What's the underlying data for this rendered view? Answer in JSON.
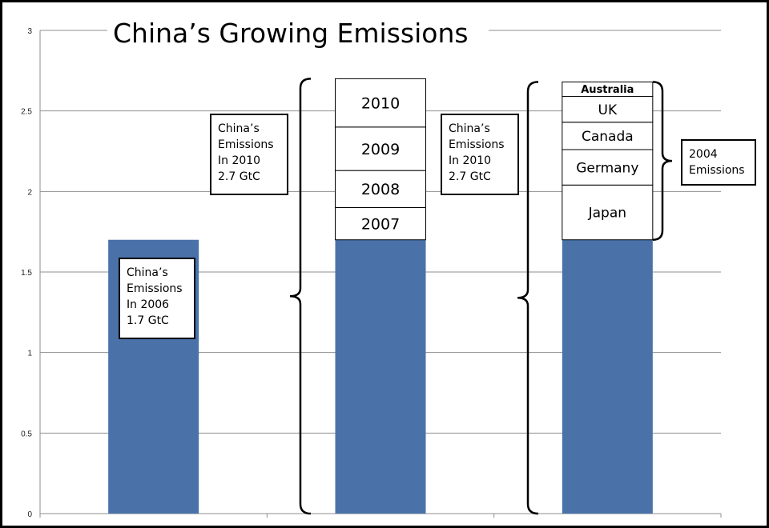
{
  "chart_data": {
    "type": "bar",
    "title": "China’s Growing Emissions",
    "xlabel": "",
    "ylabel": "",
    "ylim": [
      0,
      3
    ],
    "yticks": [
      "0",
      "0.5",
      "1",
      "1.5",
      "2",
      "2.5",
      "3"
    ],
    "grid": true,
    "bar_color": "#4A72A9",
    "bars": [
      {
        "base": 1.7,
        "segments": []
      },
      {
        "base": 1.7,
        "segments": [
          {
            "label": "2007",
            "value": 0.2
          },
          {
            "label": "2008",
            "value": 0.23
          },
          {
            "label": "2009",
            "value": 0.27
          },
          {
            "label": "2010",
            "value": 0.3
          }
        ]
      },
      {
        "base": 1.7,
        "segments": [
          {
            "label": "Japan",
            "value": 0.34
          },
          {
            "label": "Germany",
            "value": 0.22
          },
          {
            "label": "Canada",
            "value": 0.17
          },
          {
            "label": "UK",
            "value": 0.16
          },
          {
            "label": "Australia",
            "value": 0.09
          }
        ]
      }
    ],
    "annotations": [
      {
        "lines": [
          "China’s",
          "Emissions",
          "In 2006",
          "1.7 GtC"
        ]
      },
      {
        "lines": [
          "China’s",
          "Emissions",
          "In 2010",
          "2.7 GtC"
        ]
      },
      {
        "lines": [
          "China’s",
          "Emissions",
          "In 2010",
          "2.7 GtC"
        ]
      },
      {
        "lines": [
          "2004",
          "Emissions"
        ]
      }
    ]
  }
}
